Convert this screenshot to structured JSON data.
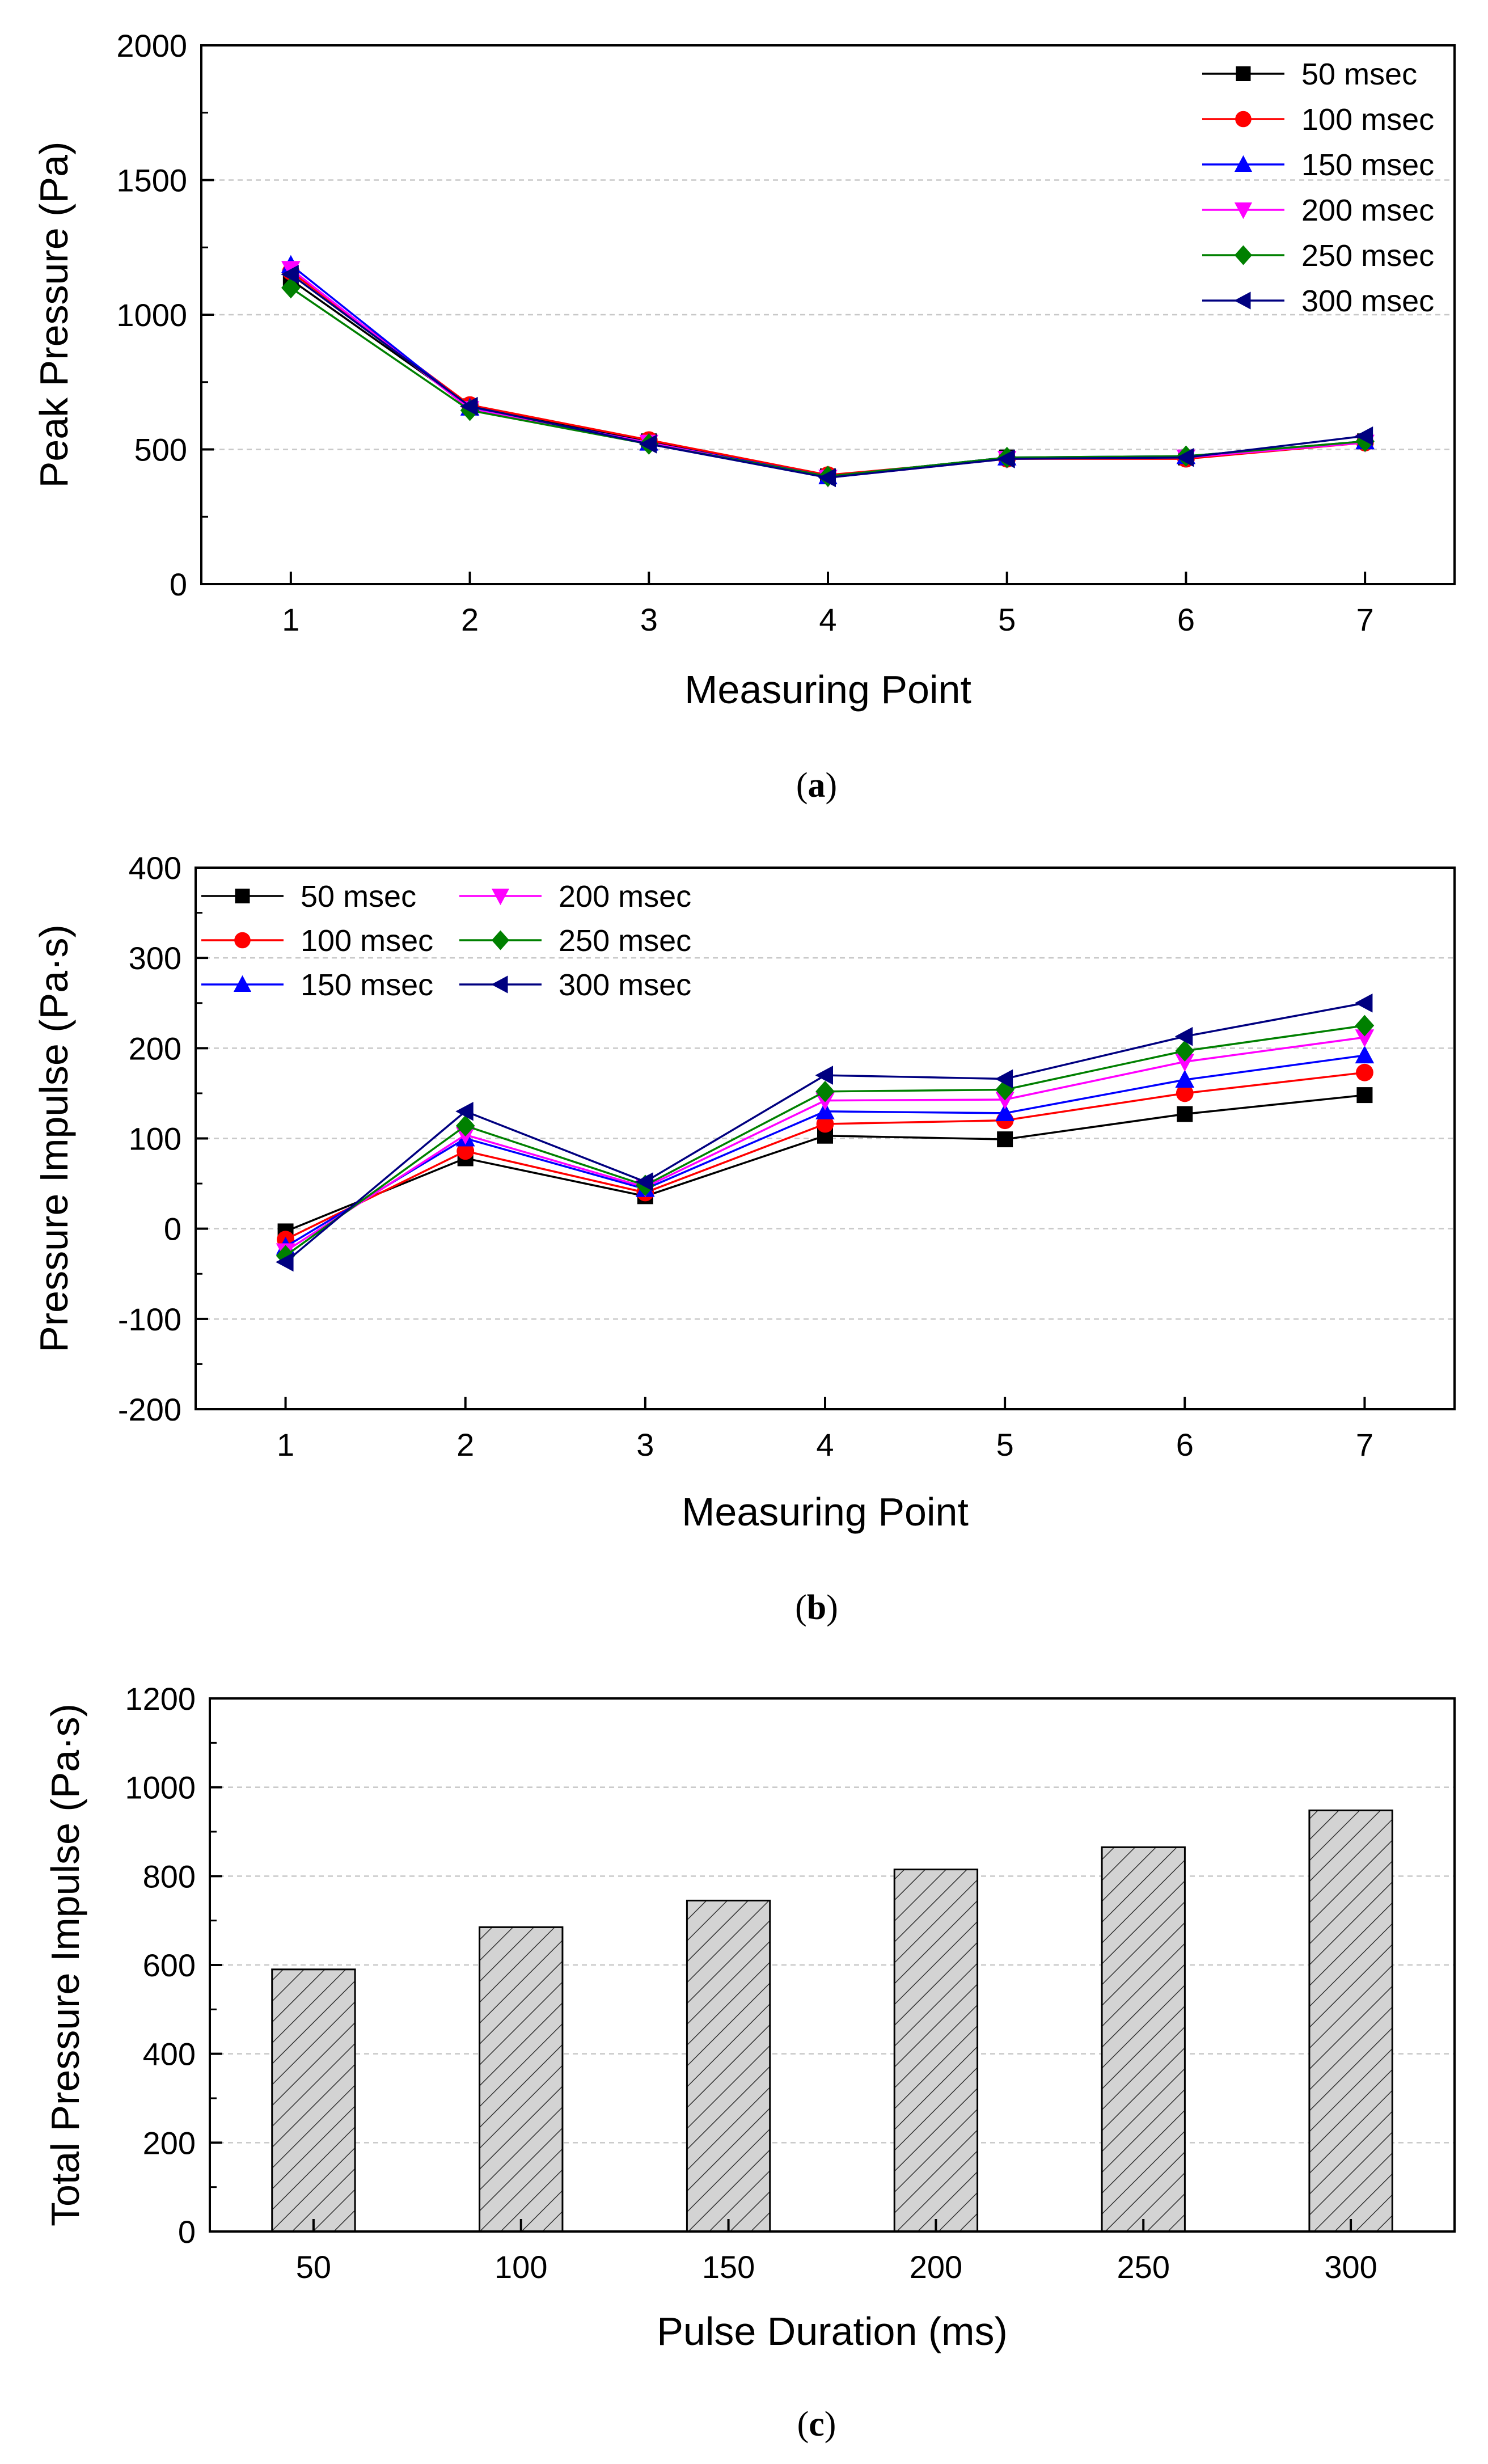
{
  "chart_data": [
    {
      "type": "line",
      "caption": {
        "open": "(",
        "letter": "a",
        "close": ")"
      },
      "xlabel": "Measuring Point",
      "ylabel": "Peak Pressure (Pa)",
      "ylim": [
        0,
        2000
      ],
      "yticks": [
        0,
        500,
        1000,
        1500,
        2000
      ],
      "xticks": [
        1,
        2,
        3,
        4,
        5,
        6,
        7
      ],
      "x": [
        1,
        2,
        3,
        4,
        5,
        6,
        7
      ],
      "grid": "horizontal-dashed",
      "legend_position": "top-right",
      "series": [
        {
          "name": "50 msec",
          "color": "#000000",
          "marker": "square",
          "values": [
            1130,
            660,
            530,
            400,
            470,
            470,
            530
          ]
        },
        {
          "name": "100 msec",
          "color": "#ff0000",
          "marker": "circle",
          "values": [
            1160,
            665,
            535,
            405,
            465,
            465,
            525
          ]
        },
        {
          "name": "150 msec",
          "color": "#0000ff",
          "marker": "triangle-up",
          "values": [
            1185,
            655,
            525,
            400,
            470,
            475,
            530
          ]
        },
        {
          "name": "200 msec",
          "color": "#ff00ff",
          "marker": "triangle-down",
          "values": [
            1170,
            650,
            525,
            395,
            465,
            470,
            525
          ]
        },
        {
          "name": "250 msec",
          "color": "#008000",
          "marker": "diamond",
          "values": [
            1100,
            645,
            520,
            400,
            470,
            475,
            530
          ]
        },
        {
          "name": "300 msec",
          "color": "#000080",
          "marker": "triangle-left",
          "values": [
            1150,
            660,
            520,
            395,
            465,
            470,
            550
          ]
        }
      ]
    },
    {
      "type": "line",
      "caption": {
        "open": "(",
        "letter": "b",
        "close": ")"
      },
      "xlabel": "Measuring Point",
      "ylabel": "Pressure Impulse (Pa·s)",
      "ylim": [
        -200,
        400
      ],
      "yticks": [
        -200,
        -100,
        0,
        100,
        200,
        300,
        400
      ],
      "xticks": [
        1,
        2,
        3,
        4,
        5,
        6,
        7
      ],
      "x": [
        1,
        2,
        3,
        4,
        5,
        6,
        7
      ],
      "grid": "horizontal-dashed",
      "legend_position": "top-left",
      "series": [
        {
          "name": "50 msec",
          "color": "#000000",
          "marker": "square",
          "values": [
            -3,
            78,
            36,
            103,
            99,
            127,
            148
          ]
        },
        {
          "name": "100 msec",
          "color": "#ff0000",
          "marker": "circle",
          "values": [
            -12,
            86,
            40,
            116,
            120,
            150,
            173
          ]
        },
        {
          "name": "150 msec",
          "color": "#0000ff",
          "marker": "triangle-up",
          "values": [
            -20,
            100,
            44,
            130,
            128,
            165,
            192
          ]
        },
        {
          "name": "200 msec",
          "color": "#ff00ff",
          "marker": "triangle-down",
          "values": [
            -25,
            104,
            46,
            142,
            143,
            185,
            212
          ]
        },
        {
          "name": "250 msec",
          "color": "#008000",
          "marker": "diamond",
          "values": [
            -30,
            114,
            48,
            152,
            154,
            197,
            225
          ]
        },
        {
          "name": "300 msec",
          "color": "#000080",
          "marker": "triangle-left",
          "values": [
            -37,
            130,
            52,
            170,
            166,
            213,
            250
          ]
        }
      ]
    },
    {
      "type": "bar",
      "caption": {
        "open": "(",
        "letter": "c",
        "close": ")"
      },
      "xlabel": "Pulse Duration (ms)",
      "ylabel": "Total Pressure Impulse (Pa·s)",
      "ylim": [
        0,
        1200
      ],
      "yticks": [
        0,
        200,
        400,
        600,
        800,
        1000,
        1200
      ],
      "categories": [
        "50",
        "100",
        "150",
        "200",
        "250",
        "300"
      ],
      "values": [
        590,
        685,
        745,
        815,
        865,
        948
      ],
      "bar_fill": "#d3d3d3",
      "bar_pattern": "diagonal-hatch",
      "grid": "horizontal-dashed"
    }
  ]
}
